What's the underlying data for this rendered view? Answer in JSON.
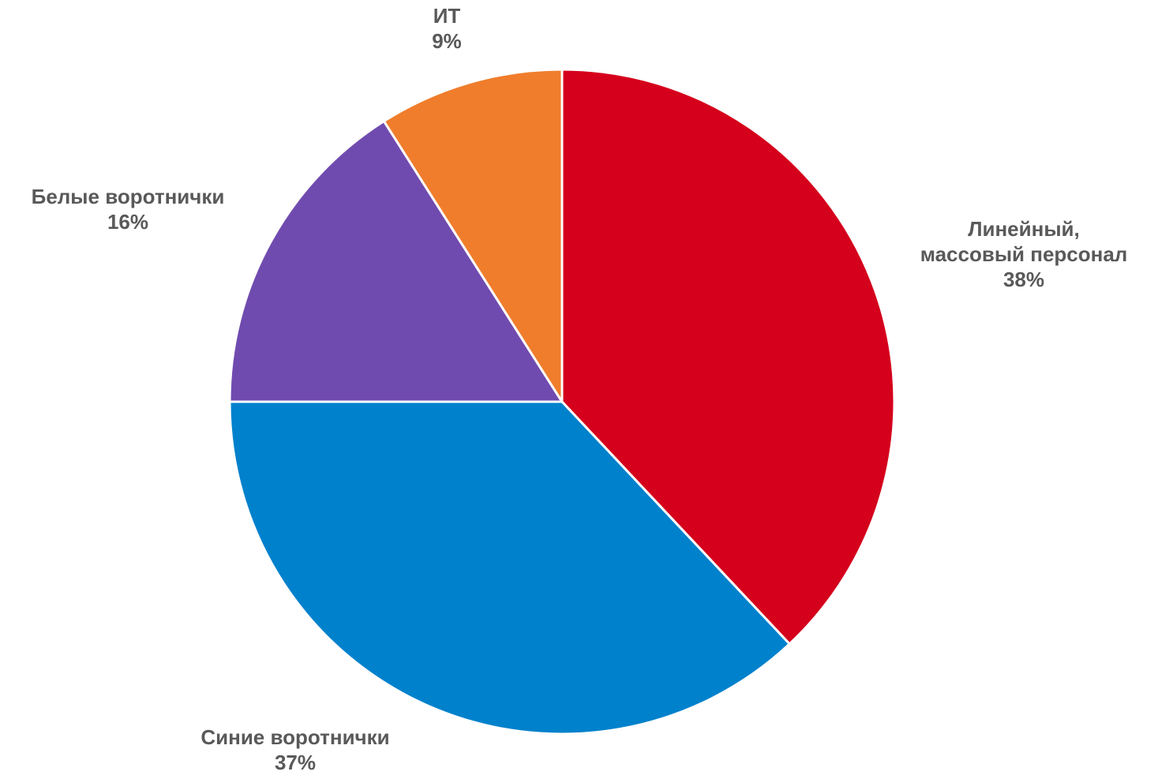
{
  "chart_data": {
    "type": "pie",
    "title": "",
    "slices": [
      {
        "label": [
          "Линейный,",
          "массовый персонал"
        ],
        "value_text": "38%",
        "value": 38,
        "color": "#D5001C"
      },
      {
        "label": [
          "Синие воротнички"
        ],
        "value_text": "37%",
        "value": 37,
        "color": "#0081CC"
      },
      {
        "label": [
          "Белые воротнички"
        ],
        "value_text": "16%",
        "value": 16,
        "color": "#704BAF"
      },
      {
        "label": [
          "ИТ"
        ],
        "value_text": "9%",
        "value": 9,
        "color": "#F07D2C"
      }
    ],
    "start": "12 o'clock",
    "direction": "clockwise",
    "legend": "none",
    "data_labels": "outside"
  }
}
